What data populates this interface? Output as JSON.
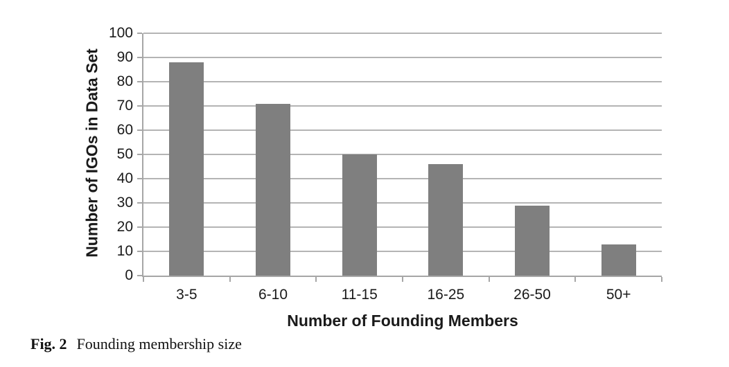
{
  "chart_data": {
    "type": "bar",
    "categories": [
      "3-5",
      "6-10",
      "11-15",
      "16-25",
      "26-50",
      "50+"
    ],
    "values": [
      88,
      71,
      50,
      46,
      29,
      13
    ],
    "title": "",
    "xlabel": "Number of Founding Members",
    "ylabel": "Number of IGOs in Data Set",
    "ylim": [
      0,
      100
    ],
    "yticks": [
      0,
      10,
      20,
      30,
      40,
      50,
      60,
      70,
      80,
      90,
      100
    ],
    "grid": "horizontal",
    "legend": "none",
    "bar_color": "#7f7f7f",
    "gridline_color": "#b4b4b4",
    "axis_color": "#a6a6a6",
    "text_color": "#1a1a1a"
  },
  "caption": {
    "label": "Fig. 2",
    "text": "Founding membership size"
  }
}
